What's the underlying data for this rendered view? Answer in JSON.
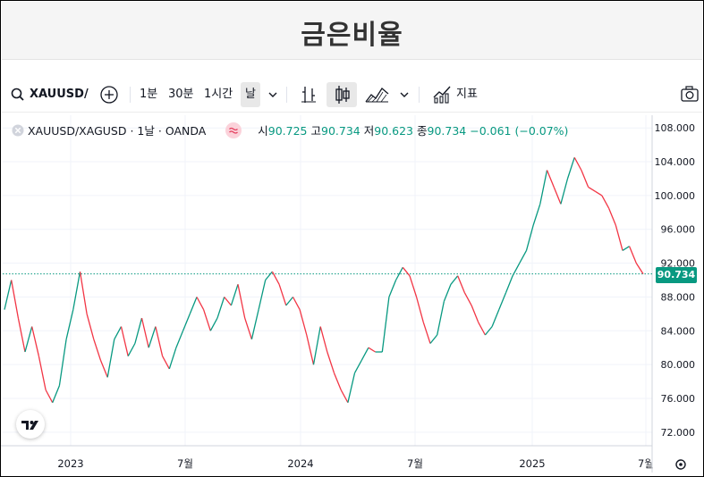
{
  "title": "금은비율",
  "toolbar": {
    "symbol": "XAUUSD/",
    "intervals": [
      "1분",
      "30분",
      "1시간",
      "날"
    ],
    "indicators_label": "지표"
  },
  "legend": {
    "pair": "XAUUSD/XAGUSD",
    "interval": "1날",
    "source": "OANDA",
    "o_label": "시",
    "o": "90.725",
    "h_label": "고",
    "h": "90.734",
    "l_label": "저",
    "l": "90.623",
    "c_label": "종",
    "c": "90.734",
    "change": "−0.061 (−0.07%)"
  },
  "colors": {
    "up": "#089981",
    "down": "#f23645",
    "line": "#089981"
  },
  "chart_data": {
    "type": "line",
    "title": "",
    "xlabel": "",
    "ylabel": "",
    "ylim": [
      70.4,
      109.5
    ],
    "y_ticks": [
      "108.000",
      "104.000",
      "100.000",
      "96.000",
      "92.000",
      "88.000",
      "84.000",
      "80.000",
      "76.000",
      "72.000"
    ],
    "x_ticks": [
      "2023",
      "7월",
      "2024",
      "7월",
      "2025",
      "7월"
    ],
    "last_price": "90.734",
    "grid": true,
    "series": [
      {
        "values": [
          86.5,
          90.0,
          85.5,
          81.5,
          84.5,
          81.0,
          77.0,
          75.5,
          77.5,
          83.0,
          86.5,
          91.0,
          86.0,
          83.0,
          80.5,
          78.5,
          83.0,
          84.5,
          81.0,
          82.5,
          85.5,
          82.0,
          84.5,
          81.0,
          79.5,
          82.0,
          84.0,
          86.0,
          88.0,
          86.5,
          84.0,
          85.5,
          88.0,
          87.0,
          89.5,
          85.5,
          83.0,
          86.5,
          90.0,
          91.0,
          89.5,
          87.0,
          88.0,
          86.5,
          83.5,
          80.0,
          84.5,
          81.5,
          79.0,
          77.0,
          75.5,
          79.0,
          80.5,
          82.0,
          81.5,
          81.5,
          88.0,
          90.0,
          91.5,
          90.5,
          88.0,
          85.0,
          82.5,
          83.5,
          87.5,
          89.5,
          90.5,
          88.5,
          87.0,
          85.0,
          83.5,
          84.5,
          86.5,
          88.5,
          90.5,
          92.0,
          93.5,
          96.5,
          99.0,
          103.0,
          101.0,
          99.0,
          102.0,
          104.5,
          103.0,
          101.0,
          100.5,
          100.0,
          98.5,
          96.5,
          93.5,
          94.0,
          92.0,
          90.734
        ]
      }
    ]
  }
}
